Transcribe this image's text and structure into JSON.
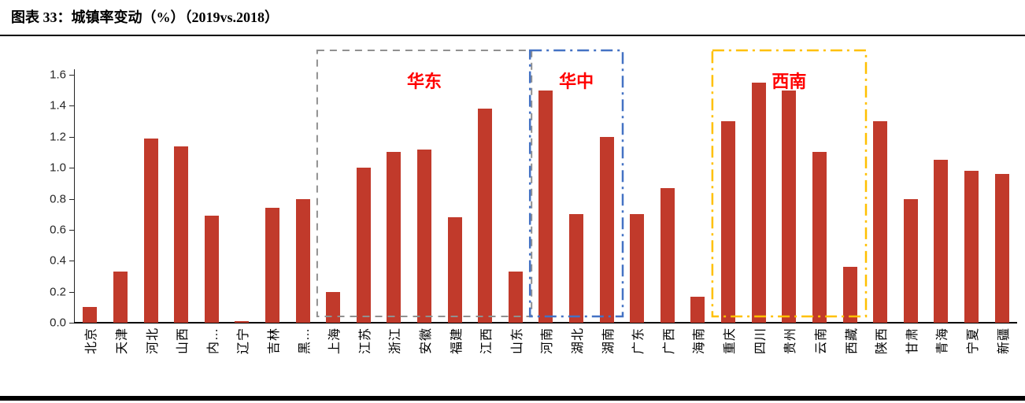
{
  "figure": {
    "title": "图表 33：城镇率变动（%）（2019vs.2018）"
  },
  "chart_data": {
    "type": "bar",
    "title": "城镇率变动（%）（2019vs.2018）",
    "categories": [
      "北京",
      "天津",
      "河北",
      "山西",
      "内…",
      "辽宁",
      "吉林",
      "黑…",
      "上海",
      "江苏",
      "浙江",
      "安徽",
      "福建",
      "江西",
      "山东",
      "河南",
      "湖北",
      "湖南",
      "广东",
      "广西",
      "海南",
      "重庆",
      "四川",
      "贵州",
      "云南",
      "西藏",
      "陕西",
      "甘肃",
      "青海",
      "宁夏",
      "新疆"
    ],
    "values": [
      0.1,
      0.33,
      1.19,
      1.14,
      0.69,
      0.01,
      0.74,
      0.8,
      0.2,
      1.0,
      1.1,
      1.12,
      0.68,
      1.38,
      0.33,
      1.5,
      0.7,
      1.2,
      0.7,
      0.87,
      0.17,
      1.3,
      1.55,
      1.5,
      1.1,
      0.36,
      1.3,
      0.8,
      1.05,
      0.98,
      0.96
    ],
    "xlabel": "",
    "ylabel": "",
    "ylim": [
      0,
      1.6
    ],
    "ytick_labels": [
      "0.0",
      "0.2",
      "0.4",
      "0.6",
      "0.8",
      "1.0",
      "1.2",
      "1.4",
      "1.6"
    ],
    "ytick_values": [
      0,
      0.2,
      0.4,
      0.6,
      0.8,
      1.0,
      1.2,
      1.4,
      1.6
    ],
    "grid": false,
    "legend": "none",
    "bar_color": "#C13A2B",
    "regions": [
      {
        "label": "华东",
        "from": "上海",
        "to": "山东",
        "border_color": "#909090",
        "border_style": "dashed",
        "label_color": "#FF0000"
      },
      {
        "label": "华中",
        "from": "河南",
        "to": "湖南",
        "border_color": "#4472C4",
        "border_style": "dash-dot",
        "label_color": "#FF0000"
      },
      {
        "label": "西南",
        "from": "重庆",
        "to": "西藏",
        "border_color": "#FFC000",
        "border_style": "dash-dot",
        "label_color": "#FF0000"
      }
    ]
  }
}
